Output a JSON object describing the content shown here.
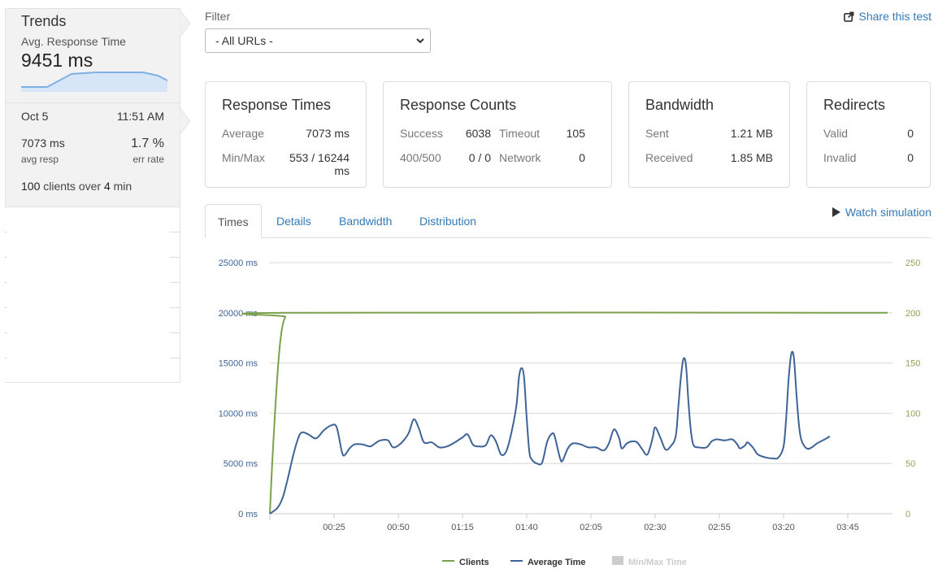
{
  "sidebar": {
    "trends_title": "Trends",
    "trend_metric": "Avg. Response Time",
    "trend_value": "9451 ms",
    "run": {
      "date": "Oct 5",
      "time": "11:51 AM",
      "avg_resp_value": "7073 ms",
      "err_rate_value": "1.7 %",
      "avg_resp_label": "avg resp",
      "err_rate_label": "err rate",
      "clients_count": "100",
      "clients_mid": "clients over",
      "clients_duration": "4",
      "clients_unit": "min"
    }
  },
  "filter": {
    "label": "Filter",
    "selected": "- All URLs -"
  },
  "share_label": "Share this test",
  "cards": {
    "response_times": {
      "title": "Response Times",
      "average_label": "Average",
      "average_value": "7073 ms",
      "minmax_label": "Min/Max",
      "minmax_value": "553 / 16244 ms"
    },
    "response_counts": {
      "title": "Response Counts",
      "success_label": "Success",
      "success_value": "6038",
      "timeout_label": "Timeout",
      "timeout_value": "105",
      "errors_label": "400/500",
      "errors_value": "0 / 0",
      "network_label": "Network",
      "network_value": "0"
    },
    "bandwidth": {
      "title": "Bandwidth",
      "sent_label": "Sent",
      "sent_value": "1.21 MB",
      "received_label": "Received",
      "received_value": "1.85 MB"
    },
    "redirects": {
      "title": "Redirects",
      "valid_label": "Valid",
      "valid_value": "0",
      "invalid_label": "Invalid",
      "invalid_value": "0"
    }
  },
  "tabs": [
    {
      "label": "Times",
      "active": true
    },
    {
      "label": "Details",
      "active": false
    },
    {
      "label": "Bandwidth",
      "active": false
    },
    {
      "label": "Distribution",
      "active": false
    }
  ],
  "watch_label": "Watch simulation",
  "colors": {
    "link": "#337ab7",
    "clients": "#7ba14a",
    "avg_time": "#3e6398",
    "minmax": "#cccccc",
    "right_axis": "#8aa555"
  },
  "chart_data": {
    "type": "line",
    "y_left": {
      "ticks": [
        0,
        5000,
        10000,
        15000,
        20000,
        25000
      ],
      "tick_labels": [
        "0 ms",
        "5000 ms",
        "10000 ms",
        "15000 ms",
        "20000 ms",
        "25000 ms"
      ],
      "range": [
        0,
        25000
      ]
    },
    "y_right": {
      "ticks": [
        0,
        50,
        100,
        150,
        200,
        250
      ],
      "tick_labels": [
        "0",
        "50",
        "100",
        "150",
        "200",
        "250"
      ],
      "range": [
        0,
        250
      ]
    },
    "x": {
      "range": [
        0,
        240
      ],
      "unit": "seconds",
      "ticks": [
        25,
        50,
        75,
        100,
        125,
        150,
        175,
        200,
        225
      ],
      "tick_labels": [
        "00:25",
        "00:50",
        "01:15",
        "01:40",
        "02:05",
        "02:30",
        "02:55",
        "03:20",
        "03:45"
      ]
    },
    "grid": true,
    "legend_position": "bottom",
    "series": [
      {
        "name": "Clients",
        "axis": "right",
        "points": [
          [
            0,
            0
          ],
          [
            1,
            55
          ],
          [
            2,
            100
          ],
          [
            3,
            140
          ],
          [
            4,
            170
          ],
          [
            5,
            188
          ],
          [
            6,
            196
          ],
          [
            7,
            200
          ],
          [
            240,
            200
          ]
        ]
      },
      {
        "name": "Average Time",
        "axis": "left",
        "points": [
          [
            0,
            0
          ],
          [
            3,
            600
          ],
          [
            5,
            1600
          ],
          [
            7,
            3500
          ],
          [
            9,
            5700
          ],
          [
            11,
            7500
          ],
          [
            12.5,
            8100
          ],
          [
            15,
            7900
          ],
          [
            18,
            7500
          ],
          [
            21,
            8300
          ],
          [
            24,
            8800
          ],
          [
            26,
            8600
          ],
          [
            28,
            6200
          ],
          [
            29,
            5800
          ],
          [
            31,
            6500
          ],
          [
            33,
            6900
          ],
          [
            36,
            6900
          ],
          [
            39,
            6700
          ],
          [
            41,
            7000
          ],
          [
            43,
            7300
          ],
          [
            46,
            7300
          ],
          [
            48,
            6600
          ],
          [
            51,
            7000
          ],
          [
            54,
            8000
          ],
          [
            56,
            9400
          ],
          [
            58,
            8500
          ],
          [
            60,
            7100
          ],
          [
            63,
            7100
          ],
          [
            66,
            6600
          ],
          [
            69,
            6700
          ],
          [
            72,
            7100
          ],
          [
            75,
            7600
          ],
          [
            77,
            7900
          ],
          [
            79,
            6900
          ],
          [
            81,
            6700
          ],
          [
            84,
            6800
          ],
          [
            86,
            7800
          ],
          [
            88,
            7200
          ],
          [
            90,
            5900
          ],
          [
            92,
            6200
          ],
          [
            94,
            8000
          ],
          [
            96,
            10800
          ],
          [
            97,
            13600
          ],
          [
            98,
            14500
          ],
          [
            99,
            13500
          ],
          [
            100,
            9500
          ],
          [
            101,
            6200
          ],
          [
            102,
            5400
          ],
          [
            104,
            5000
          ],
          [
            106,
            5100
          ],
          [
            108,
            7200
          ],
          [
            110,
            8000
          ],
          [
            111,
            7600
          ],
          [
            113,
            5500
          ],
          [
            114,
            5300
          ],
          [
            116,
            6500
          ],
          [
            118,
            7000
          ],
          [
            121,
            6900
          ],
          [
            124,
            6600
          ],
          [
            127,
            6600
          ],
          [
            130,
            6300
          ],
          [
            132,
            7000
          ],
          [
            134,
            8400
          ],
          [
            136,
            7500
          ],
          [
            137,
            6500
          ],
          [
            139,
            7000
          ],
          [
            141,
            7200
          ],
          [
            143,
            7100
          ],
          [
            145,
            6400
          ],
          [
            147,
            5900
          ],
          [
            149,
            7500
          ],
          [
            150,
            8600
          ],
          [
            152,
            7600
          ],
          [
            154,
            6400
          ],
          [
            156,
            6700
          ],
          [
            158,
            7700
          ],
          [
            159,
            10500
          ],
          [
            160,
            13500
          ],
          [
            161,
            15400
          ],
          [
            162,
            14800
          ],
          [
            163,
            11000
          ],
          [
            164,
            8100
          ],
          [
            165,
            6800
          ],
          [
            167,
            6600
          ],
          [
            170,
            6600
          ],
          [
            172,
            7200
          ],
          [
            174,
            7400
          ],
          [
            177,
            7300
          ],
          [
            180,
            7400
          ],
          [
            182,
            6900
          ],
          [
            183,
            6500
          ],
          [
            185,
            6800
          ],
          [
            186,
            7100
          ],
          [
            188,
            6600
          ],
          [
            190,
            5900
          ],
          [
            193,
            5600
          ],
          [
            196,
            5500
          ],
          [
            198,
            5600
          ],
          [
            200,
            6700
          ],
          [
            201,
            9500
          ],
          [
            202,
            13500
          ],
          [
            203,
            15900
          ],
          [
            204,
            15600
          ],
          [
            205,
            12000
          ],
          [
            206,
            8800
          ],
          [
            207,
            7300
          ],
          [
            209,
            6500
          ],
          [
            211,
            6600
          ],
          [
            213,
            7000
          ],
          [
            216,
            7400
          ],
          [
            218,
            7700
          ]
        ]
      },
      {
        "name": "Min/Max Time",
        "axis": "left",
        "hidden": true,
        "points": []
      }
    ]
  }
}
